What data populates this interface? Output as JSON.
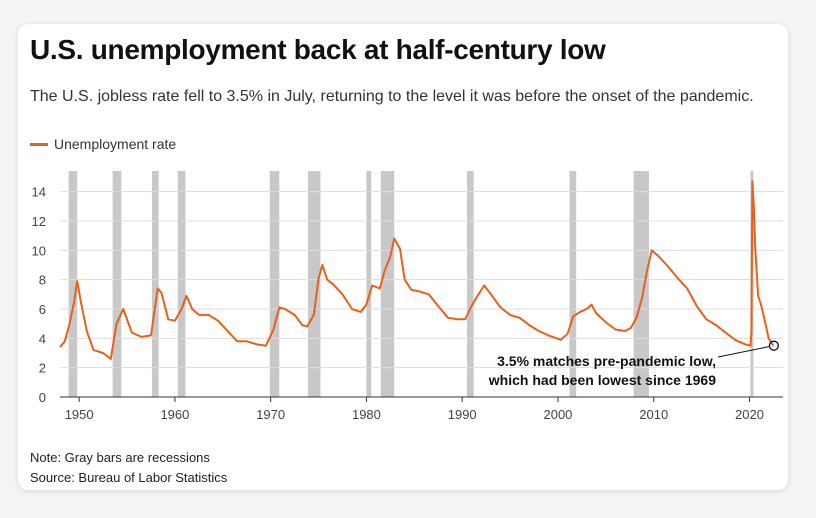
{
  "title": "U.S. unemployment back at half-century low",
  "subtitle": "The U.S. jobless rate fell to 3.5% in July, returning to the level it was before the onset of the pandemic.",
  "legend_label": "Unemployment rate",
  "annotation": {
    "line1": "3.5% matches pre-pandemic low,",
    "line2": "which had been lowest since 1969"
  },
  "note": "Note: Gray bars are recessions",
  "source": "Source: Bureau of Labor Statistics",
  "colors": {
    "series": "#e8601c",
    "recession": "#c8c8c8",
    "grid": "#dddddd",
    "axis": "#333333"
  },
  "chart_data": {
    "type": "line",
    "title": "U.S. unemployment back at half-century low",
    "xlabel": "",
    "ylabel": "",
    "xlim": [
      1948,
      2023.5
    ],
    "ylim": [
      0,
      15
    ],
    "yticks": [
      0,
      2,
      4,
      6,
      8,
      10,
      12,
      14
    ],
    "xticks": [
      1950,
      1960,
      1970,
      1980,
      1990,
      2000,
      2010,
      2020
    ],
    "grid": true,
    "series": [
      {
        "name": "Unemployment rate",
        "x": [
          1948,
          1948.5,
          1949,
          1949.5,
          1949.8,
          1950.2,
          1950.8,
          1951.5,
          1952.5,
          1953.3,
          1953.9,
          1954.6,
          1955.5,
          1956.5,
          1957.5,
          1958.2,
          1958.6,
          1959.3,
          1960,
          1960.7,
          1961.2,
          1961.8,
          1962.5,
          1963.5,
          1964.5,
          1965.5,
          1966.5,
          1967.5,
          1968.5,
          1969.5,
          1970.3,
          1970.9,
          1971.5,
          1972.5,
          1973.3,
          1973.8,
          1974.5,
          1975,
          1975.4,
          1975.9,
          1976.5,
          1977.5,
          1978.5,
          1979.4,
          1980,
          1980.6,
          1981.4,
          1981.9,
          1982.5,
          1982.9,
          1983.5,
          1984,
          1984.7,
          1985.5,
          1986.5,
          1987.5,
          1988.5,
          1989.5,
          1990.3,
          1990.9,
          1991.5,
          1992.3,
          1993,
          1994,
          1995,
          1996,
          1997,
          1998,
          1999,
          2000.3,
          2001,
          2001.6,
          2002.3,
          2003,
          2003.5,
          2004,
          2005,
          2006,
          2007,
          2007.6,
          2008.2,
          2008.8,
          2009.3,
          2009.8,
          2010.5,
          2011.5,
          2012.5,
          2013.5,
          2014.5,
          2015.5,
          2016.5,
          2017.5,
          2018.5,
          2019.5,
          2020.1,
          2020.2,
          2020.3,
          2020.45,
          2020.6,
          2020.9,
          2021.2,
          2021.6,
          2022,
          2022.5
        ],
        "values": [
          3.4,
          3.8,
          5.0,
          6.6,
          7.9,
          6.4,
          4.5,
          3.2,
          3.0,
          2.6,
          5.0,
          6.0,
          4.4,
          4.1,
          4.2,
          7.4,
          7.1,
          5.3,
          5.2,
          6.0,
          6.9,
          6.0,
          5.6,
          5.6,
          5.2,
          4.5,
          3.8,
          3.8,
          3.6,
          3.5,
          4.6,
          6.1,
          6.0,
          5.6,
          4.9,
          4.8,
          5.6,
          8.1,
          9.0,
          8.0,
          7.7,
          7.0,
          6.0,
          5.8,
          6.3,
          7.6,
          7.4,
          8.6,
          9.6,
          10.8,
          10.1,
          8.0,
          7.3,
          7.2,
          7.0,
          6.2,
          5.4,
          5.3,
          5.3,
          6.1,
          6.8,
          7.6,
          7.0,
          6.1,
          5.6,
          5.4,
          4.9,
          4.5,
          4.2,
          3.9,
          4.3,
          5.5,
          5.8,
          6.0,
          6.3,
          5.7,
          5.1,
          4.6,
          4.5,
          4.7,
          5.4,
          6.8,
          8.6,
          10.0,
          9.6,
          8.9,
          8.1,
          7.4,
          6.2,
          5.3,
          4.9,
          4.4,
          3.9,
          3.6,
          3.5,
          4.4,
          14.7,
          13.0,
          10.2,
          6.9,
          6.3,
          5.2,
          4.0,
          3.5
        ]
      }
    ],
    "recessions": [
      [
        1948.9,
        1949.8
      ],
      [
        1953.5,
        1954.4
      ],
      [
        1957.6,
        1958.3
      ],
      [
        1960.3,
        1961.1
      ],
      [
        1969.9,
        1970.9
      ],
      [
        1973.9,
        1975.2
      ],
      [
        1980.0,
        1980.5
      ],
      [
        1981.5,
        1982.9
      ],
      [
        1990.5,
        1991.2
      ],
      [
        2001.2,
        2001.9
      ],
      [
        2007.9,
        2009.5
      ],
      [
        2020.1,
        2020.4
      ]
    ],
    "highlight_point": {
      "x": 2022.55,
      "y": 3.5
    }
  }
}
